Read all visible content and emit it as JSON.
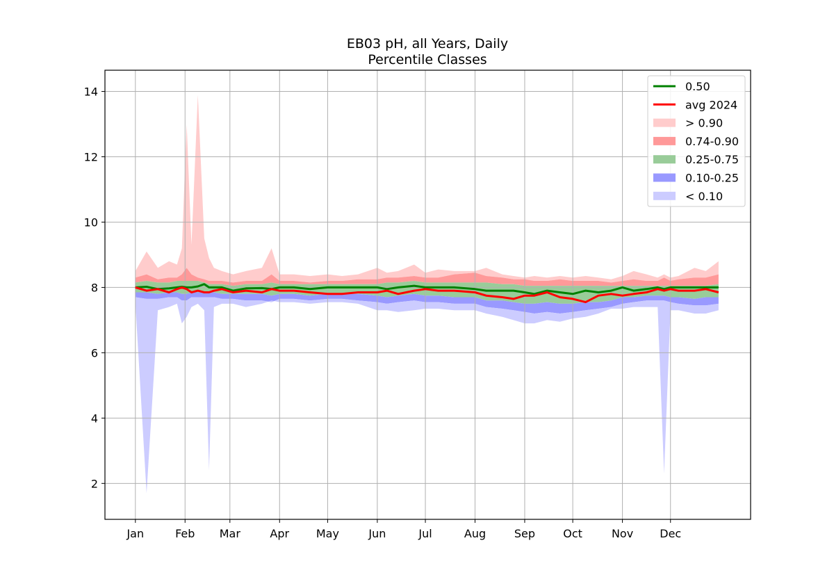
{
  "chart_data": {
    "type": "area",
    "title": "EB03 pH, all Years, Daily",
    "subtitle": "Percentile Classes",
    "xlabel": "",
    "ylabel": "",
    "x_unit": "day of year",
    "x_ticks": [
      {
        "day": 1,
        "label": "Jan"
      },
      {
        "day": 32,
        "label": "Feb"
      },
      {
        "day": 60,
        "label": "Mar"
      },
      {
        "day": 91,
        "label": "Apr"
      },
      {
        "day": 121,
        "label": "May"
      },
      {
        "day": 152,
        "label": "Jun"
      },
      {
        "day": 182,
        "label": "Jul"
      },
      {
        "day": 213,
        "label": "Aug"
      },
      {
        "day": 244,
        "label": "Sep"
      },
      {
        "day": 274,
        "label": "Oct"
      },
      {
        "day": 305,
        "label": "Nov"
      },
      {
        "day": 335,
        "label": "Dec"
      }
    ],
    "y_ticks": [
      2,
      4,
      6,
      8,
      10,
      12,
      14
    ],
    "xlim": [
      -18,
      385
    ],
    "ylim": [
      0.9,
      14.65
    ],
    "grid": true,
    "legend_position": "top-right",
    "colors": {
      "p50": "#008000",
      "avg": "#ff0000",
      "gt90": "#ffcccc",
      "p74_90": "#ff9999",
      "p25_75": "#99cc99",
      "p10_25": "#9999ff",
      "lt10": "#ccccff"
    },
    "legend": [
      {
        "label": "0.50",
        "kind": "line",
        "color": "#008000"
      },
      {
        "label": "avg 2024",
        "kind": "line",
        "color": "#ff0000"
      },
      {
        "label": "> 0.90",
        "kind": "patch",
        "color": "#ffcccc"
      },
      {
        "label": "0.74-0.90",
        "kind": "patch",
        "color": "#ff9999"
      },
      {
        "label": "0.25-0.75",
        "kind": "patch",
        "color": "#99cc99"
      },
      {
        "label": "0.10-0.25",
        "kind": "patch",
        "color": "#9999ff"
      },
      {
        "label": "< 0.10",
        "kind": "patch",
        "color": "#ccccff"
      }
    ],
    "series": {
      "x": [
        1,
        8,
        15,
        22,
        27,
        30,
        33,
        36,
        40,
        44,
        47,
        50,
        55,
        62,
        70,
        80,
        86,
        91,
        100,
        110,
        121,
        130,
        140,
        152,
        158,
        165,
        175,
        182,
        190,
        200,
        213,
        220,
        230,
        237,
        244,
        250,
        258,
        266,
        274,
        282,
        290,
        298,
        305,
        312,
        320,
        327,
        331,
        335,
        340,
        350,
        357,
        365
      ],
      "max": [
        8.5,
        9.1,
        8.6,
        8.8,
        8.7,
        9.2,
        13.0,
        9.3,
        13.9,
        9.5,
        8.9,
        8.6,
        8.5,
        8.4,
        8.5,
        8.6,
        9.2,
        8.4,
        8.4,
        8.35,
        8.4,
        8.35,
        8.4,
        8.6,
        8.45,
        8.5,
        8.7,
        8.45,
        8.55,
        8.5,
        8.5,
        8.6,
        8.4,
        8.35,
        8.3,
        8.35,
        8.3,
        8.35,
        8.3,
        8.35,
        8.3,
        8.25,
        8.35,
        8.5,
        8.4,
        8.3,
        8.4,
        8.3,
        8.35,
        8.6,
        8.5,
        8.8
      ],
      "p90": [
        8.3,
        8.4,
        8.25,
        8.3,
        8.3,
        8.4,
        8.6,
        8.4,
        8.3,
        8.25,
        8.2,
        8.2,
        8.2,
        8.15,
        8.2,
        8.2,
        8.4,
        8.2,
        8.2,
        8.15,
        8.2,
        8.2,
        8.25,
        8.25,
        8.3,
        8.3,
        8.35,
        8.3,
        8.3,
        8.4,
        8.45,
        8.35,
        8.3,
        8.25,
        8.25,
        8.2,
        8.2,
        8.25,
        8.2,
        8.2,
        8.2,
        8.15,
        8.2,
        8.25,
        8.2,
        8.2,
        8.3,
        8.2,
        8.25,
        8.3,
        8.3,
        8.4
      ],
      "p75": [
        8.15,
        8.2,
        8.15,
        8.15,
        8.2,
        8.2,
        8.2,
        8.2,
        8.2,
        8.15,
        8.1,
        8.1,
        8.1,
        8.05,
        8.1,
        8.1,
        8.15,
        8.1,
        8.1,
        8.1,
        8.1,
        8.1,
        8.1,
        8.1,
        8.15,
        8.15,
        8.2,
        8.15,
        8.15,
        8.15,
        8.15,
        8.15,
        8.1,
        8.1,
        8.05,
        8.05,
        8.05,
        8.05,
        8.05,
        8.05,
        8.05,
        8.05,
        8.05,
        8.05,
        8.05,
        8.05,
        8.05,
        8.05,
        8.05,
        8.05,
        8.05,
        8.1
      ],
      "p50": [
        8.0,
        8.02,
        7.95,
        7.97,
        8.0,
        8.02,
        8.0,
        8.0,
        8.03,
        8.1,
        8.0,
        8.0,
        8.0,
        7.9,
        7.97,
        7.98,
        7.95,
        8.0,
        8.0,
        7.95,
        8.0,
        8.0,
        8.0,
        8.0,
        7.95,
        8.0,
        8.05,
        8.0,
        8.0,
        8.0,
        7.95,
        7.9,
        7.9,
        7.9,
        7.85,
        7.8,
        7.9,
        7.85,
        7.8,
        7.9,
        7.85,
        7.9,
        8.0,
        7.9,
        7.95,
        8.0,
        7.95,
        8.0,
        8.0,
        8.0,
        8.0,
        8.0
      ],
      "p25": [
        7.85,
        7.85,
        7.8,
        7.85,
        7.85,
        7.8,
        7.8,
        7.85,
        7.85,
        7.85,
        7.85,
        7.85,
        7.8,
        7.8,
        7.8,
        7.8,
        7.75,
        7.8,
        7.8,
        7.75,
        7.8,
        7.8,
        7.8,
        7.75,
        7.7,
        7.75,
        7.8,
        7.75,
        7.75,
        7.7,
        7.7,
        7.6,
        7.6,
        7.55,
        7.5,
        7.5,
        7.55,
        7.5,
        7.5,
        7.55,
        7.55,
        7.6,
        7.7,
        7.7,
        7.75,
        7.75,
        7.75,
        7.7,
        7.7,
        7.65,
        7.7,
        7.7
      ],
      "p10": [
        7.7,
        7.65,
        7.65,
        7.7,
        7.7,
        7.6,
        7.6,
        7.7,
        7.7,
        7.7,
        7.7,
        7.7,
        7.65,
        7.65,
        7.6,
        7.6,
        7.55,
        7.65,
        7.65,
        7.6,
        7.65,
        7.65,
        7.6,
        7.55,
        7.5,
        7.55,
        7.6,
        7.55,
        7.55,
        7.5,
        7.5,
        7.4,
        7.35,
        7.3,
        7.25,
        7.2,
        7.25,
        7.2,
        7.25,
        7.3,
        7.35,
        7.4,
        7.5,
        7.55,
        7.6,
        7.6,
        7.6,
        7.55,
        7.5,
        7.45,
        7.45,
        7.5
      ],
      "min": [
        7.5,
        1.7,
        7.3,
        7.4,
        7.5,
        6.9,
        7.1,
        7.4,
        7.5,
        7.3,
        2.4,
        7.4,
        7.5,
        7.5,
        7.4,
        7.5,
        7.6,
        7.55,
        7.55,
        7.5,
        7.55,
        7.55,
        7.5,
        7.3,
        7.3,
        7.25,
        7.3,
        7.35,
        7.35,
        7.3,
        7.3,
        7.2,
        7.1,
        7.0,
        6.9,
        6.9,
        7.0,
        6.95,
        7.05,
        7.1,
        7.2,
        7.35,
        7.35,
        7.4,
        7.4,
        7.4,
        2.3,
        7.3,
        7.3,
        7.2,
        7.2,
        7.3
      ],
      "avg_2024": [
        8.0,
        7.9,
        7.95,
        7.85,
        7.95,
        8.0,
        7.95,
        7.85,
        7.9,
        7.85,
        7.85,
        7.9,
        7.95,
        7.85,
        7.9,
        7.85,
        7.95,
        7.9,
        7.9,
        7.85,
        7.8,
        7.8,
        7.85,
        7.85,
        7.9,
        7.8,
        7.9,
        7.95,
        7.9,
        7.9,
        7.85,
        7.75,
        7.7,
        7.65,
        7.75,
        7.75,
        7.85,
        7.7,
        7.65,
        7.55,
        7.75,
        7.8,
        7.75,
        7.8,
        7.85,
        7.95,
        7.9,
        7.95,
        7.9,
        7.9,
        7.95,
        7.85
      ]
    }
  }
}
